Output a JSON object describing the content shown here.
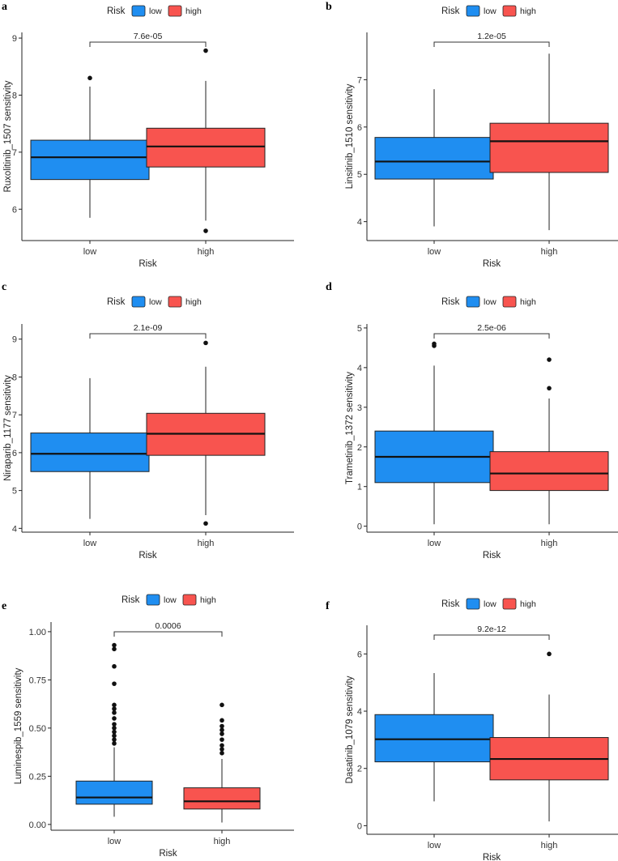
{
  "colors": {
    "low": "#1f8ef1",
    "high": "#f8544f"
  },
  "chart_data": [
    {
      "type": "box",
      "label": "a",
      "title": "",
      "xlabel": "Risk",
      "ylabel": "Ruxolitinib_1507 sensitivity",
      "categories": [
        "low",
        "high"
      ],
      "legend": {
        "title": "Risk",
        "entries": [
          "low",
          "high"
        ]
      },
      "ylim": [
        5.45,
        9.1
      ],
      "yticks": [
        "6",
        "7",
        "8",
        "9"
      ],
      "p_value": "7.6e-05",
      "boxes": [
        {
          "name": "low",
          "min": 5.85,
          "q1": 6.52,
          "median": 6.91,
          "q3": 7.21,
          "max": 8.15,
          "outliers": [
            8.3
          ]
        },
        {
          "name": "high",
          "min": 5.8,
          "q1": 6.74,
          "median": 7.1,
          "q3": 7.42,
          "max": 8.25,
          "outliers": [
            8.78,
            5.62
          ]
        }
      ]
    },
    {
      "type": "box",
      "label": "b",
      "title": "",
      "xlabel": "Risk",
      "ylabel": "Linsitinib_1510 sensitivity",
      "categories": [
        "low",
        "high"
      ],
      "legend": {
        "title": "Risk",
        "entries": [
          "low",
          "high"
        ]
      },
      "ylim": [
        3.6,
        8.0
      ],
      "yticks": [
        "4",
        "5",
        "6",
        "7"
      ],
      "p_value": "1.2e-05",
      "boxes": [
        {
          "name": "low",
          "min": 3.9,
          "q1": 4.9,
          "median": 5.27,
          "q3": 5.78,
          "max": 6.8,
          "outliers": []
        },
        {
          "name": "high",
          "min": 3.82,
          "q1": 5.04,
          "median": 5.7,
          "q3": 6.08,
          "max": 7.55,
          "outliers": []
        }
      ]
    },
    {
      "type": "box",
      "label": "c",
      "title": "",
      "xlabel": "Risk",
      "ylabel": "Niraparib_1177 sensitivity",
      "categories": [
        "low",
        "high"
      ],
      "legend": {
        "title": "Risk",
        "entries": [
          "low",
          "high"
        ]
      },
      "ylim": [
        3.9,
        9.4
      ],
      "yticks": [
        "4",
        "5",
        "6",
        "7",
        "8",
        "9"
      ],
      "p_value": "2.1e-09",
      "boxes": [
        {
          "name": "low",
          "min": 4.25,
          "q1": 5.5,
          "median": 5.97,
          "q3": 6.52,
          "max": 7.97,
          "outliers": []
        },
        {
          "name": "high",
          "min": 4.35,
          "q1": 5.93,
          "median": 6.5,
          "q3": 7.04,
          "max": 8.27,
          "outliers": [
            8.9,
            4.13
          ]
        }
      ]
    },
    {
      "type": "box",
      "label": "d",
      "title": "",
      "xlabel": "Risk",
      "ylabel": "Trametinib_1372 sensitivity",
      "categories": [
        "low",
        "high"
      ],
      "legend": {
        "title": "Risk",
        "entries": [
          "low",
          "high"
        ]
      },
      "ylim": [
        -0.15,
        5.1
      ],
      "yticks": [
        "0",
        "1",
        "2",
        "3",
        "4",
        "5"
      ],
      "p_value": "2.5e-06",
      "boxes": [
        {
          "name": "low",
          "min": 0.05,
          "q1": 1.1,
          "median": 1.75,
          "q3": 2.4,
          "max": 4.05,
          "outliers": [
            4.55,
            4.6
          ]
        },
        {
          "name": "high",
          "min": 0.05,
          "q1": 0.9,
          "median": 1.33,
          "q3": 1.88,
          "max": 3.22,
          "outliers": [
            4.2,
            3.48
          ]
        }
      ]
    },
    {
      "type": "box",
      "label": "e",
      "title": "",
      "xlabel": "Risk",
      "ylabel": "Luminespib_1559 sensitivity",
      "categories": [
        "low",
        "high"
      ],
      "legend": {
        "title": "Risk",
        "entries": [
          "low",
          "high"
        ]
      },
      "ylim": [
        -0.03,
        1.05
      ],
      "yticks": [
        "0.00",
        "0.25",
        "0.50",
        "0.75",
        "1.00"
      ],
      "p_value": "0.0006",
      "boxes": [
        {
          "name": "low",
          "min": 0.04,
          "q1": 0.105,
          "median": 0.14,
          "q3": 0.225,
          "max": 0.4,
          "outliers": [
            0.42,
            0.44,
            0.46,
            0.48,
            0.5,
            0.52,
            0.55,
            0.58,
            0.6,
            0.62,
            0.73,
            0.82,
            0.91,
            0.93
          ]
        },
        {
          "name": "high",
          "min": 0.01,
          "q1": 0.08,
          "median": 0.12,
          "q3": 0.19,
          "max": 0.34,
          "outliers": [
            0.37,
            0.39,
            0.41,
            0.44,
            0.47,
            0.49,
            0.51,
            0.54,
            0.62
          ]
        }
      ]
    },
    {
      "type": "box",
      "label": "f",
      "title": "",
      "xlabel": "Risk",
      "ylabel": "Dasatinib_1079 sensitivity",
      "categories": [
        "low",
        "high"
      ],
      "legend": {
        "title": "Risk",
        "entries": [
          "low",
          "high"
        ]
      },
      "ylim": [
        -0.3,
        7.0
      ],
      "yticks": [
        "0",
        "2",
        "4",
        "6"
      ],
      "p_value": "9.2e-12",
      "boxes": [
        {
          "name": "low",
          "min": 0.85,
          "q1": 2.23,
          "median": 3.02,
          "q3": 3.88,
          "max": 5.33,
          "outliers": []
        },
        {
          "name": "high",
          "min": 0.15,
          "q1": 1.6,
          "median": 2.33,
          "q3": 3.08,
          "max": 4.58,
          "outliers": [
            6.0
          ]
        }
      ]
    }
  ]
}
